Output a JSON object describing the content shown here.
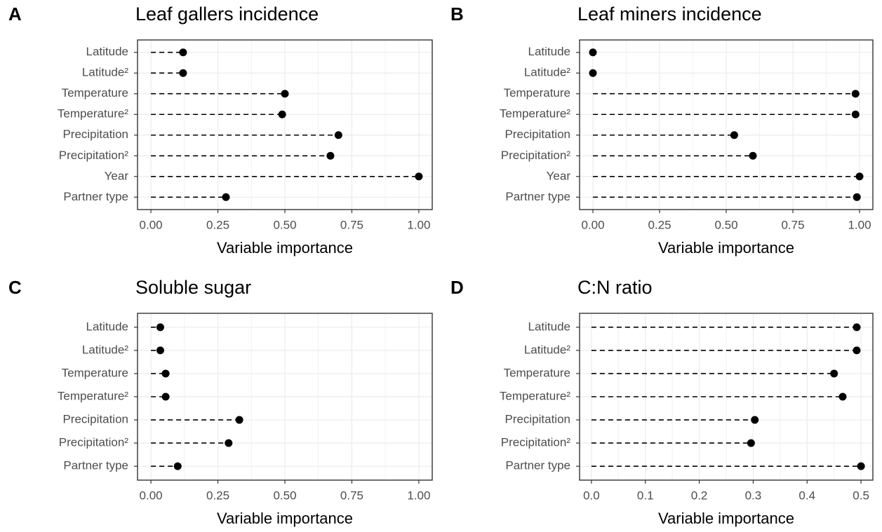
{
  "chart_data": [
    {
      "type": "lollipop",
      "panel": "A",
      "title": "Leaf gallers incidence",
      "xlabel": "Variable importance",
      "categories": [
        "Latitude",
        "Latitude²",
        "Temperature",
        "Temperature²",
        "Precipitation",
        "Precipitation²",
        "Year",
        "Partner type"
      ],
      "values": [
        0.12,
        0.12,
        0.5,
        0.49,
        0.7,
        0.67,
        1.0,
        0.28
      ],
      "color": "#000000",
      "xlim": [
        -0.05,
        1.05
      ],
      "xticks": [
        {
          "value": 0,
          "label": "0.00"
        },
        {
          "value": 0.25,
          "label": "0.25"
        },
        {
          "value": 0.5,
          "label": "0.50"
        },
        {
          "value": 0.75,
          "label": "0.75"
        },
        {
          "value": 1,
          "label": "1.00"
        }
      ],
      "grid": true
    },
    {
      "type": "lollipop",
      "panel": "B",
      "title": "Leaf miners incidence",
      "xlabel": "Variable importance",
      "categories": [
        "Latitude",
        "Latitude²",
        "Temperature",
        "Temperature²",
        "Precipitation",
        "Precipitation²",
        "Year",
        "Partner type"
      ],
      "values": [
        0.0,
        0.0,
        0.985,
        0.985,
        0.53,
        0.6,
        1.0,
        0.99
      ],
      "color": "#000000",
      "xlim": [
        -0.05,
        1.05
      ],
      "xticks": [
        {
          "value": 0,
          "label": "0.00"
        },
        {
          "value": 0.25,
          "label": "0.25"
        },
        {
          "value": 0.5,
          "label": "0.50"
        },
        {
          "value": 0.75,
          "label": "0.75"
        },
        {
          "value": 1,
          "label": "1.00"
        }
      ],
      "grid": true
    },
    {
      "type": "lollipop",
      "panel": "C",
      "title": "Soluble sugar",
      "xlabel": "Variable importance",
      "categories": [
        "Latitude",
        "Latitude²",
        "Temperature",
        "Temperature²",
        "Precipitation",
        "Precipitation²",
        "Partner type"
      ],
      "values": [
        0.035,
        0.035,
        0.055,
        0.055,
        0.33,
        0.29,
        0.1
      ],
      "color": "#000000",
      "xlim": [
        -0.05,
        1.05
      ],
      "xticks": [
        {
          "value": 0,
          "label": "0.00"
        },
        {
          "value": 0.25,
          "label": "0.25"
        },
        {
          "value": 0.5,
          "label": "0.50"
        },
        {
          "value": 0.75,
          "label": "0.75"
        },
        {
          "value": 1,
          "label": "1.00"
        }
      ],
      "grid": true
    },
    {
      "type": "lollipop",
      "panel": "D",
      "title": "C:N ratio",
      "xlabel": "Variable importance",
      "categories": [
        "Latitude",
        "Latitude²",
        "Temperature",
        "Temperature²",
        "Precipitation",
        "Precipitation²",
        "Partner type"
      ],
      "values": [
        0.492,
        0.492,
        0.45,
        0.466,
        0.303,
        0.296,
        0.5
      ],
      "color": "#000000",
      "xlim": [
        -0.022,
        0.522
      ],
      "xticks": [
        {
          "value": 0,
          "label": "0.0"
        },
        0.1,
        0.2,
        0.3,
        0.4,
        0.5
      ],
      "grid": true
    }
  ]
}
